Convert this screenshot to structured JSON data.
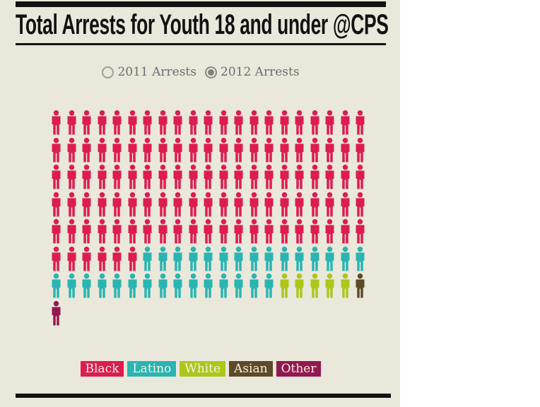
{
  "page": {
    "panel_background": "#eae8db",
    "outer_background": "#ffffff",
    "bar_color": "#121212"
  },
  "header": {
    "title": "Total Arrests for Youth 18 and under @CPS"
  },
  "controls": {
    "options": [
      {
        "label": "2011 Arrests",
        "selected": false
      },
      {
        "label": "2012 Arrests",
        "selected": true
      }
    ]
  },
  "chart_data": {
    "type": "pictograph",
    "title": "Total Arrests for Youth 18 and under @CPS",
    "selected_series": "2012 Arrests",
    "icons_per_row": 21,
    "total_icons": 148,
    "categories": [
      "Black",
      "Latino",
      "White",
      "Asian",
      "Other"
    ],
    "series": [
      {
        "name": "2012 Arrests",
        "values": [
          111,
          30,
          5,
          1,
          1
        ]
      }
    ],
    "colors": {
      "Black": "#dd1c50",
      "Latino": "#2ab4b2",
      "White": "#aec61c",
      "Asian": "#5d4a27",
      "Other": "#93184f"
    },
    "legend_position": "bottom"
  },
  "legend": {
    "items": [
      {
        "label": "Black",
        "color": "#dd1c50"
      },
      {
        "label": "Latino",
        "color": "#2ab4b2"
      },
      {
        "label": "White",
        "color": "#aec61c"
      },
      {
        "label": "Asian",
        "color": "#5d4a27"
      },
      {
        "label": "Other",
        "color": "#93184f"
      }
    ]
  }
}
